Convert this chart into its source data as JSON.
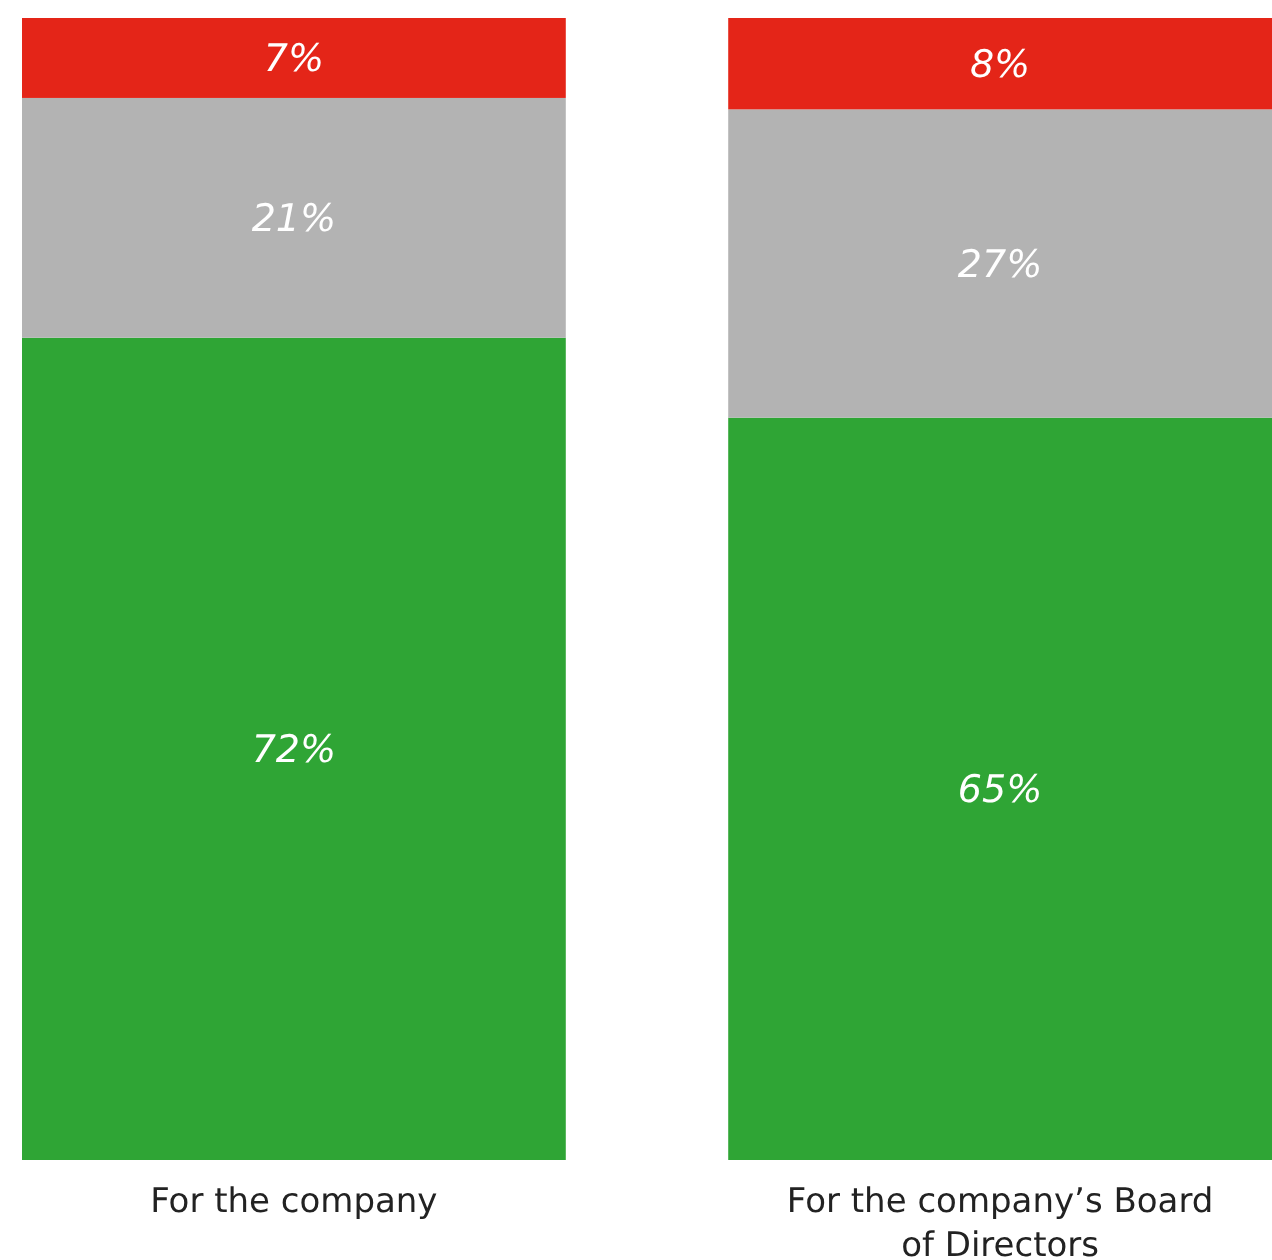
{
  "chart_data": {
    "type": "bar",
    "stacked": true,
    "categories": [
      "For the company",
      "For the company’s Board of Directors"
    ],
    "ylim": [
      0,
      100
    ],
    "tick_labels": "x",
    "series": [
      {
        "color": "#2fa535",
        "values": [
          72,
          65
        ],
        "value_labels": [
          "72%",
          "65%"
        ]
      },
      {
        "color": "#b3b3b3",
        "values": [
          21,
          27
        ],
        "value_labels": [
          "21%",
          "27%"
        ]
      },
      {
        "color": "#e42518",
        "values": [
          7,
          8
        ],
        "value_labels": [
          "7%",
          "8%"
        ]
      }
    ]
  }
}
